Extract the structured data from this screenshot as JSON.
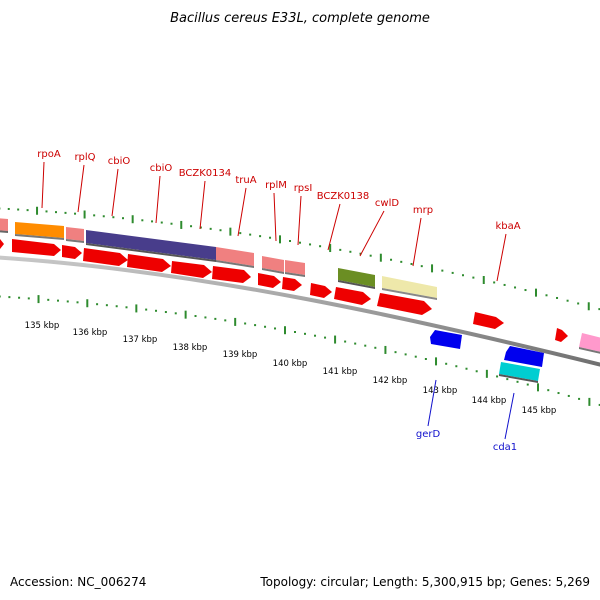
{
  "title": "Bacillus cereus E33L, complete genome",
  "footer": {
    "accession": "Accession: NC_006274",
    "summary": "Topology: circular; Length: 5,300,915 bp; Genes: 5,269"
  },
  "colors": {
    "backbone": "#8c8c8c",
    "tick": "#2e8b2e",
    "forward_label": "#cc0000",
    "reverse_label": "#1010cc"
  },
  "scale": {
    "unit": "kbp",
    "labels": [
      "135 kbp",
      "136 kbp",
      "137 kbp",
      "138 kbp",
      "139 kbp",
      "140 kbp",
      "141 kbp",
      "142 kbp",
      "143 kbp",
      "144 kbp",
      "145 kbp"
    ]
  },
  "forward_labels": [
    "rpoA",
    "rplQ",
    "cbiO",
    "cbiO",
    "BCZK0134",
    "truA",
    "rplM",
    "rpsI",
    "BCZK0138",
    "cwlD",
    "mrp",
    "kbaA"
  ],
  "reverse_labels": [
    "gerD",
    "cda1"
  ],
  "features": {
    "cog_colors": [
      "#f08080",
      "#ff8c00",
      "#483d8b",
      "#6b8e23",
      "#eee8aa",
      "#0000ee",
      "#00ced1",
      "#ff99cc",
      "#ee0000"
    ]
  }
}
